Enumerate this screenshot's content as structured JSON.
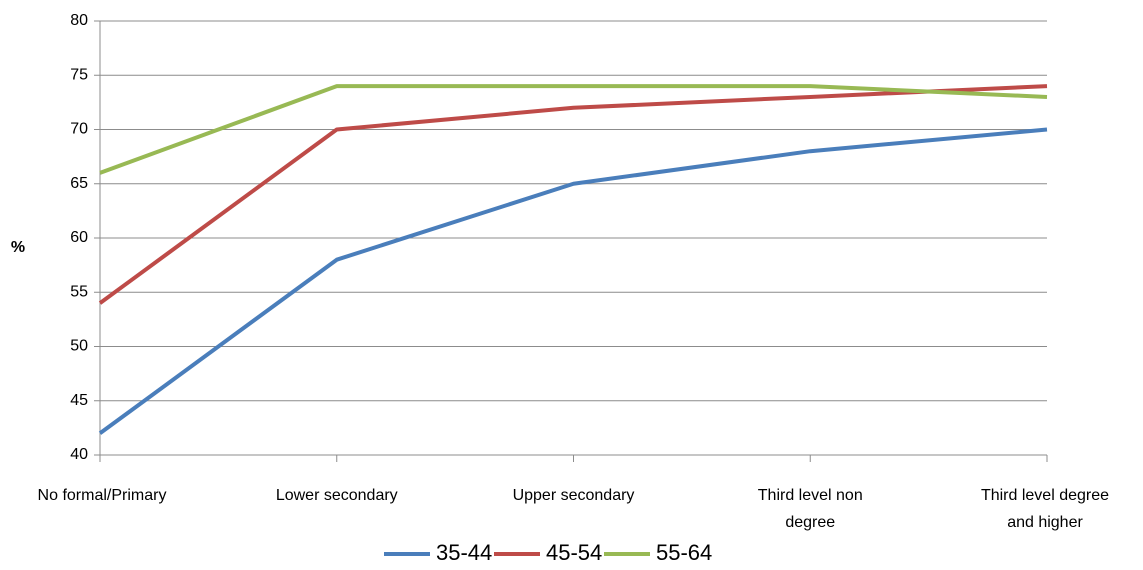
{
  "chart_data": {
    "type": "line",
    "title": "",
    "xlabel": "",
    "ylabel": "%",
    "ylim": [
      40,
      80
    ],
    "yticks": [
      40,
      45,
      50,
      55,
      60,
      65,
      70,
      75,
      80
    ],
    "grid": true,
    "legend_position": "bottom",
    "categories": [
      [
        "No formal/Primary"
      ],
      [
        "Lower secondary"
      ],
      [
        "Upper secondary"
      ],
      [
        "Third level non",
        "degree"
      ],
      [
        "Third level degree",
        "and higher"
      ]
    ],
    "series": [
      {
        "name": "35-44",
        "color": "#4a7ebb",
        "values": [
          42,
          58,
          65,
          68,
          70
        ]
      },
      {
        "name": "45-54",
        "color": "#be4b48",
        "values": [
          54,
          70,
          72,
          73,
          74
        ]
      },
      {
        "name": "55-64",
        "color": "#98b954",
        "values": [
          66,
          74,
          74,
          74,
          73
        ]
      }
    ],
    "colors": {
      "gridline": "#8c8c8c",
      "axis": "#8c8c8c"
    }
  }
}
